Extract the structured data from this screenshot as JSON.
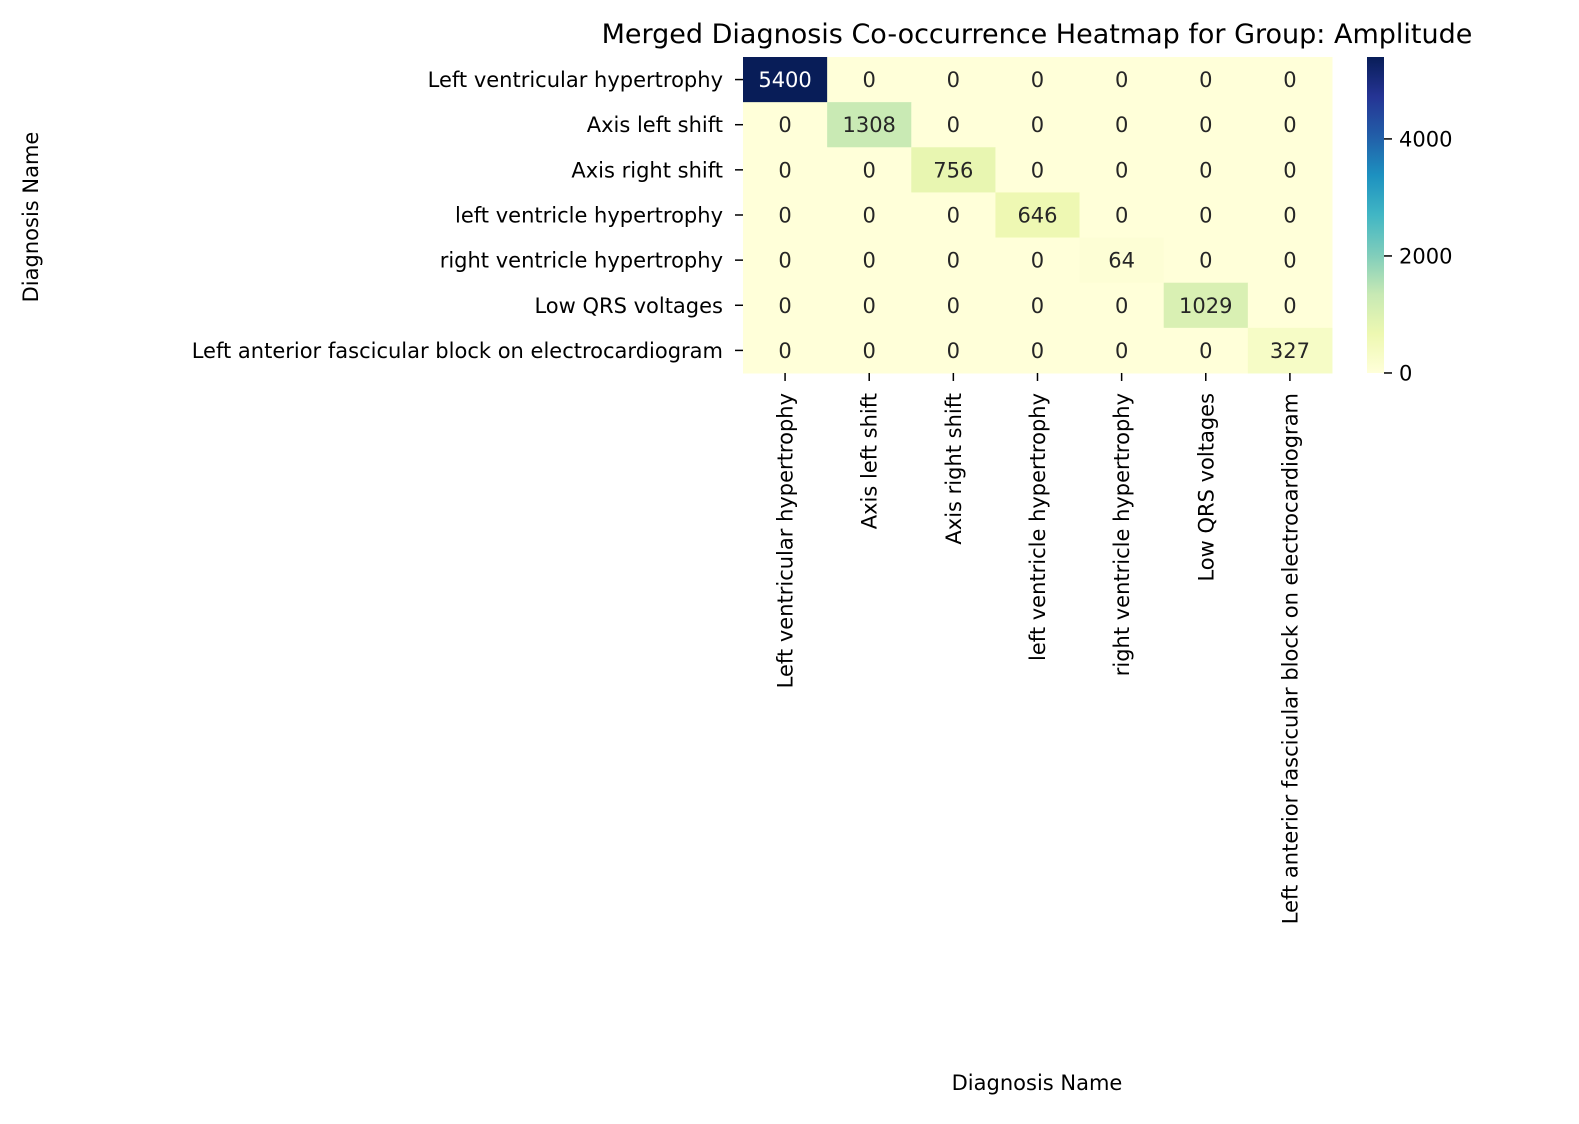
{
  "chart_data": {
    "type": "heatmap",
    "title": "Merged Diagnosis Co-occurrence Heatmap for Group: Amplitude",
    "xlabel": "Diagnosis Name",
    "ylabel": "Diagnosis Name",
    "row_labels": [
      "Left ventricular hypertrophy",
      "Axis left shift",
      "Axis right shift",
      "left ventricle hypertrophy",
      "right ventricle hypertrophy",
      "Low QRS voltages",
      "Left anterior fascicular block on electrocardiogram"
    ],
    "col_labels": [
      "Left ventricular hypertrophy",
      "Axis left shift",
      "Axis right shift",
      "left ventricle hypertrophy",
      "right ventricle hypertrophy",
      "Low QRS voltages",
      "Left anterior fascicular block on electrocardiogram"
    ],
    "values": [
      [
        5400,
        0,
        0,
        0,
        0,
        0,
        0
      ],
      [
        0,
        1308,
        0,
        0,
        0,
        0,
        0
      ],
      [
        0,
        0,
        756,
        0,
        0,
        0,
        0
      ],
      [
        0,
        0,
        0,
        646,
        0,
        0,
        0
      ],
      [
        0,
        0,
        0,
        0,
        64,
        0,
        0
      ],
      [
        0,
        0,
        0,
        0,
        0,
        1029,
        0
      ],
      [
        0,
        0,
        0,
        0,
        0,
        0,
        327
      ]
    ],
    "colormap": "YlGnBu",
    "colorbar": {
      "range": [
        0,
        5400
      ],
      "ticks": [
        0,
        2000,
        4000
      ]
    }
  }
}
